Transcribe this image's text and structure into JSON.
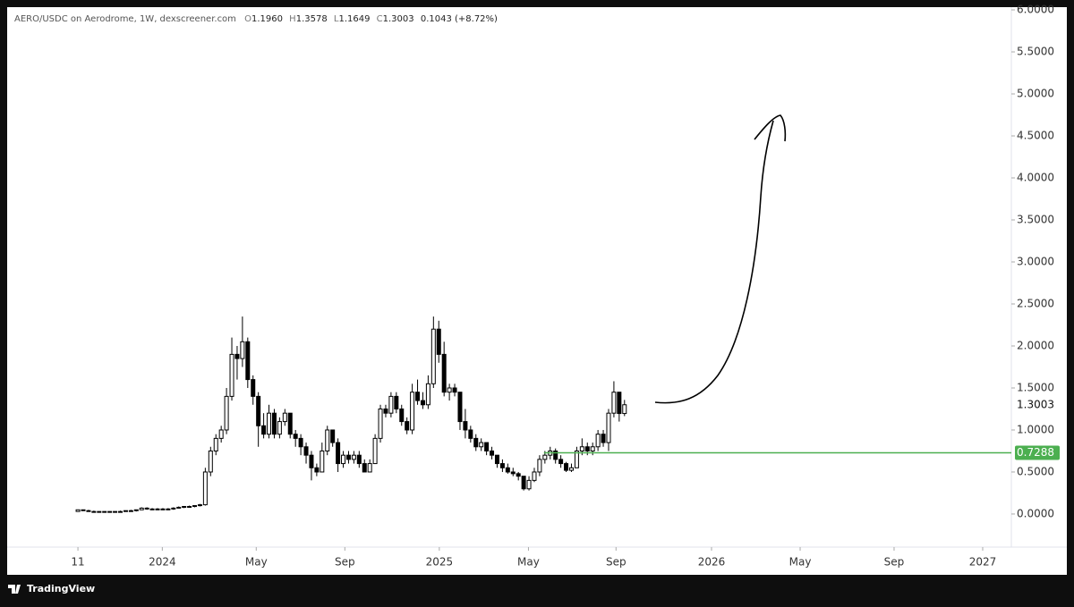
{
  "header": {
    "symbol": "AERO/USDC on Aerodrome, 1W, dexscreener.com",
    "ohlc": [
      {
        "key": "O",
        "value": "1.1960"
      },
      {
        "key": "H",
        "value": "1.3578"
      },
      {
        "key": "L",
        "value": "1.1649"
      },
      {
        "key": "C",
        "value": "1.3003"
      }
    ],
    "change": "0.1043 (+8.72%)"
  },
  "footer": {
    "brand": "TradingView"
  },
  "chart_data": {
    "type": "candlestick",
    "x": [
      0,
      1,
      2,
      3,
      4,
      5,
      6,
      7,
      8,
      9,
      10,
      11,
      12,
      13,
      14,
      15,
      16,
      17,
      18,
      19,
      20,
      21,
      22,
      23,
      24,
      25,
      26,
      27,
      28,
      29,
      30,
      31,
      32,
      33,
      34,
      35,
      36,
      37,
      38,
      39,
      40,
      41,
      42,
      43,
      44,
      45,
      46,
      47,
      48,
      49,
      50,
      51,
      52,
      53,
      54,
      55,
      56,
      57,
      58,
      59,
      60,
      61,
      62,
      63,
      64,
      65,
      66,
      67,
      68,
      69,
      70,
      71,
      72,
      73,
      74,
      75,
      76,
      77,
      78,
      79,
      80,
      81,
      82,
      83,
      84,
      85,
      86,
      87,
      88,
      89,
      90,
      91,
      92,
      93,
      94,
      95,
      96,
      97,
      98,
      99,
      100,
      101,
      102,
      103
    ],
    "open": [
      0.03,
      0.05,
      0.04,
      0.03,
      0.03,
      0.02,
      0.03,
      0.02,
      0.03,
      0.03,
      0.04,
      0.04,
      0.05,
      0.07,
      0.06,
      0.06,
      0.06,
      0.06,
      0.06,
      0.07,
      0.08,
      0.09,
      0.09,
      0.1,
      0.11,
      0.5,
      0.75,
      0.9,
      1.0,
      1.4,
      1.9,
      1.85,
      2.05,
      1.6,
      1.4,
      1.05,
      0.95,
      1.2,
      0.95,
      1.1,
      1.2,
      0.95,
      0.9,
      0.8,
      0.7,
      0.55,
      0.5,
      0.75,
      1.0,
      0.85,
      0.6,
      0.7,
      0.65,
      0.7,
      0.6,
      0.5,
      0.6,
      0.9,
      1.25,
      1.2,
      1.4,
      1.25,
      1.1,
      1.0,
      1.45,
      1.35,
      1.3,
      1.55,
      2.2,
      1.9,
      1.45,
      1.5,
      1.45,
      1.1,
      1.0,
      0.9,
      0.8,
      0.85,
      0.75,
      0.7,
      0.6,
      0.55,
      0.5,
      0.48,
      0.45,
      0.3,
      0.4,
      0.5,
      0.65,
      0.7,
      0.75,
      0.65,
      0.6,
      0.52,
      0.55,
      0.75,
      0.8,
      0.75,
      0.8,
      0.95,
      0.85,
      1.2,
      1.45,
      1.196
    ],
    "high": [
      0.05,
      0.05,
      0.05,
      0.04,
      0.03,
      0.03,
      0.03,
      0.03,
      0.04,
      0.04,
      0.05,
      0.05,
      0.08,
      0.08,
      0.07,
      0.07,
      0.07,
      0.07,
      0.08,
      0.09,
      0.09,
      0.1,
      0.1,
      0.12,
      0.55,
      0.8,
      0.95,
      1.05,
      1.5,
      2.1,
      2.0,
      2.35,
      2.1,
      1.65,
      1.45,
      1.2,
      1.3,
      1.25,
      1.15,
      1.25,
      1.2,
      1.0,
      0.95,
      0.85,
      0.75,
      0.6,
      0.85,
      1.05,
      1.0,
      0.9,
      0.75,
      0.75,
      0.75,
      0.75,
      0.65,
      0.65,
      0.95,
      1.3,
      1.3,
      1.45,
      1.45,
      1.3,
      1.15,
      1.55,
      1.6,
      1.45,
      1.65,
      2.35,
      2.3,
      2.05,
      1.55,
      1.55,
      1.45,
      1.25,
      1.05,
      0.95,
      0.9,
      0.85,
      0.8,
      0.7,
      0.65,
      0.6,
      0.55,
      0.5,
      0.45,
      0.45,
      0.55,
      0.7,
      0.75,
      0.8,
      0.78,
      0.7,
      0.62,
      0.6,
      0.8,
      0.9,
      0.85,
      0.85,
      1.0,
      1.0,
      1.25,
      1.58,
      1.45,
      1.3578
    ],
    "low": [
      0.03,
      0.04,
      0.03,
      0.02,
      0.02,
      0.02,
      0.02,
      0.02,
      0.02,
      0.03,
      0.03,
      0.03,
      0.05,
      0.05,
      0.05,
      0.05,
      0.05,
      0.05,
      0.05,
      0.07,
      0.07,
      0.08,
      0.08,
      0.09,
      0.1,
      0.45,
      0.7,
      0.85,
      0.95,
      1.35,
      1.6,
      1.75,
      1.5,
      1.3,
      0.8,
      0.9,
      0.9,
      0.9,
      0.9,
      1.05,
      0.9,
      0.8,
      0.7,
      0.6,
      0.4,
      0.45,
      0.5,
      0.7,
      0.8,
      0.5,
      0.55,
      0.6,
      0.6,
      0.55,
      0.5,
      0.5,
      0.6,
      0.85,
      1.15,
      1.15,
      1.2,
      1.05,
      0.95,
      0.95,
      1.3,
      1.25,
      1.25,
      1.5,
      1.8,
      1.4,
      1.35,
      1.4,
      1.0,
      0.9,
      0.85,
      0.75,
      0.75,
      0.7,
      0.65,
      0.55,
      0.5,
      0.48,
      0.45,
      0.4,
      0.28,
      0.28,
      0.38,
      0.45,
      0.6,
      0.65,
      0.6,
      0.55,
      0.5,
      0.5,
      0.55,
      0.7,
      0.7,
      0.7,
      0.75,
      0.8,
      0.75,
      1.15,
      1.1,
      1.1649
    ],
    "close": [
      0.05,
      0.04,
      0.03,
      0.03,
      0.02,
      0.03,
      0.02,
      0.03,
      0.03,
      0.04,
      0.04,
      0.05,
      0.07,
      0.06,
      0.06,
      0.06,
      0.06,
      0.06,
      0.07,
      0.08,
      0.09,
      0.09,
      0.1,
      0.11,
      0.5,
      0.75,
      0.9,
      1.0,
      1.4,
      1.9,
      1.85,
      2.05,
      1.6,
      1.4,
      1.05,
      0.95,
      1.2,
      0.95,
      1.1,
      1.2,
      0.95,
      0.9,
      0.8,
      0.7,
      0.55,
      0.5,
      0.75,
      1.0,
      0.85,
      0.6,
      0.7,
      0.65,
      0.7,
      0.6,
      0.5,
      0.6,
      0.9,
      1.25,
      1.2,
      1.4,
      1.25,
      1.1,
      1.0,
      1.45,
      1.35,
      1.3,
      1.55,
      2.2,
      1.9,
      1.45,
      1.5,
      1.45,
      1.1,
      1.0,
      0.9,
      0.8,
      0.85,
      0.75,
      0.7,
      0.6,
      0.55,
      0.5,
      0.48,
      0.45,
      0.3,
      0.4,
      0.5,
      0.65,
      0.7,
      0.75,
      0.65,
      0.6,
      0.52,
      0.55,
      0.75,
      0.8,
      0.75,
      0.8,
      0.95,
      0.85,
      1.2,
      1.45,
      1.196,
      1.3003
    ],
    "up_color": "#ffffff",
    "down_color": "#000000",
    "wick_color": "#000000",
    "xlim": [
      -13,
      175.9
    ],
    "xticks": [
      {
        "value": 0,
        "label": "11"
      },
      {
        "value": 15.9,
        "label": "2024"
      },
      {
        "value": 33.6,
        "label": "May"
      },
      {
        "value": 50.3,
        "label": "Sep"
      },
      {
        "value": 68.1,
        "label": "2025"
      },
      {
        "value": 84.9,
        "label": "May"
      },
      {
        "value": 101.4,
        "label": "Sep"
      },
      {
        "value": 119.4,
        "label": "2026"
      },
      {
        "value": 136.1,
        "label": "May"
      },
      {
        "value": 153.8,
        "label": "Sep"
      },
      {
        "value": 170.5,
        "label": "2027"
      }
    ],
    "ylim": [
      -0.394,
      6.011
    ],
    "yticks": [
      {
        "value": 0,
        "label": "0.0000"
      },
      {
        "value": 0.5,
        "label": "0.5000"
      },
      {
        "value": 1,
        "label": "1.0000"
      },
      {
        "value": 1.5,
        "label": "1.5000"
      },
      {
        "value": 2,
        "label": "2.0000"
      },
      {
        "value": 2.5,
        "label": "2.5000"
      },
      {
        "value": 3,
        "label": "3.0000"
      },
      {
        "value": 3.5,
        "label": "3.5000"
      },
      {
        "value": 4,
        "label": "4.0000"
      },
      {
        "value": 4.5,
        "label": "4.5000"
      },
      {
        "value": 5,
        "label": "5.0000"
      },
      {
        "value": 5.5,
        "label": "5.5000"
      },
      {
        "value": 6,
        "label": "6.0000"
      }
    ],
    "last_price": {
      "value": 1.3003,
      "label": "1.3003"
    },
    "price_line": {
      "value": 0.7288,
      "label": "0.7288",
      "color": "#4caf50"
    }
  }
}
